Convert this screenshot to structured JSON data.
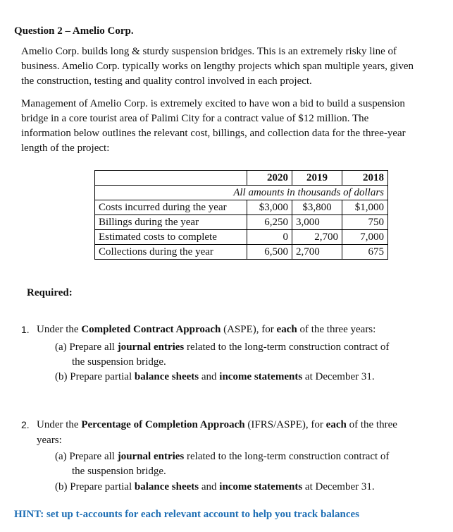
{
  "title": "Question 2 – Amelio Corp.",
  "intro": [
    "Amelio Corp. builds long & sturdy suspension bridges. This is an extremely risky line of",
    "business. Amelio Corp. typically works on lengthy projects which span multiple years, given",
    "the construction, testing and quality control involved in each project."
  ],
  "context": [
    "Management of Amelio Corp. is extremely excited to have won a bid to build a suspension",
    "bridge in a core tourist area of Palimi City for a contract value of $12 million. The",
    "information below outlines the relevant cost, billings, and collection data for the three-year",
    "length of the project:"
  ],
  "table": {
    "years": [
      "2020",
      "2019",
      "2018"
    ],
    "note": "All amounts in thousands of dollars",
    "rows": [
      {
        "label": "Costs incurred during the year",
        "values": [
          "$3,000",
          "$3,800",
          "$1,000"
        ]
      },
      {
        "label": "Billings during the year",
        "values": [
          "6,250",
          "3,000",
          "750"
        ]
      },
      {
        "label": "Estimated costs to complete",
        "values": [
          "0",
          "2,700",
          "7,000"
        ]
      },
      {
        "label": "Collections during the year",
        "values": [
          "6,500",
          "2,700",
          "675"
        ]
      }
    ]
  },
  "required_label": "Required:",
  "q1": {
    "num": "1.",
    "line": [
      "Under the ",
      "Completed Contract Approach",
      " (ASPE), for ",
      "each",
      " of the three years:"
    ],
    "a": [
      "(a) Prepare all ",
      "journal entries",
      " related to the long-term construction contract of"
    ],
    "a2": "the suspension bridge.",
    "b": [
      "(b) Prepare partial ",
      "balance sheets",
      " and ",
      "income statements",
      " at December 31."
    ]
  },
  "q2": {
    "num": "2.",
    "line": [
      "Under the ",
      "Percentage of Completion Approach",
      " (IFRS/ASPE), for ",
      "each",
      " of the three"
    ],
    "line2": "years:",
    "a": [
      "(a) Prepare all ",
      "journal entries",
      " related to the long-term construction contract of"
    ],
    "a2": "the suspension bridge.",
    "b": [
      "(b) Prepare partial ",
      "balance sheets",
      " and ",
      "income statements",
      " at December 31."
    ]
  },
  "hint": "HINT: set up t-accounts for each relevant account to help you track balances",
  "colors": {
    "hint": "#1f6fb5",
    "text": "#111111"
  }
}
